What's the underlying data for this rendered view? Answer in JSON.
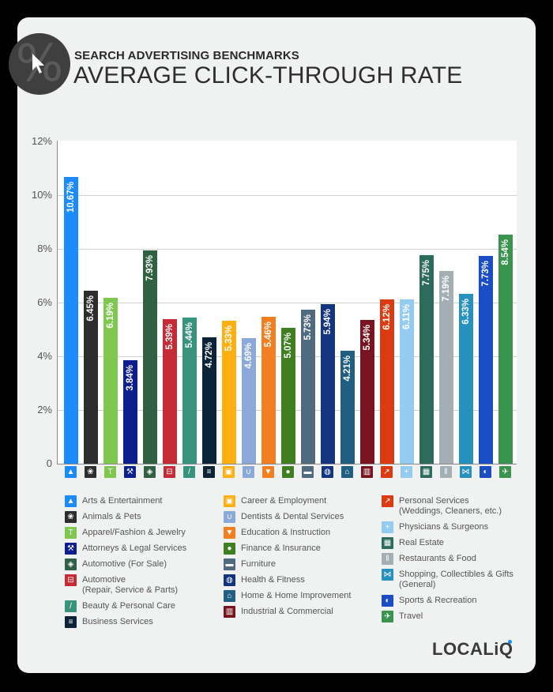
{
  "header": {
    "subtitle": "SEARCH ADVERTISING BENCHMARKS",
    "title": "AVERAGE CLICK-THROUGH RATE",
    "badge_glyph": "%"
  },
  "footer": {
    "logo_text": "LOCALiQ",
    "logo_dot_color": "#1a8cff"
  },
  "chart_data": {
    "type": "bar",
    "title": "Average Click-Through Rate",
    "subtitle": "Search Advertising Benchmarks",
    "xlabel": "",
    "ylabel": "",
    "ylim": [
      0,
      12
    ],
    "yticks": [
      "0",
      "2%",
      "4%",
      "6%",
      "8%",
      "10%",
      "12%"
    ],
    "grid": true,
    "legend_position": "bottom",
    "categories": [
      "Arts & Entertainment",
      "Animals & Pets",
      "Apparel/Fashion & Jewelry",
      "Attorneys & Legal Services",
      "Automotive (For Sale)",
      "Automotive (Repair, Service & Parts)",
      "Beauty & Personal Care",
      "Business Services",
      "Career & Employment",
      "Dentists & Dental Services",
      "Education & Instruction",
      "Finance & Insurance",
      "Furniture",
      "Health & Fitness",
      "Home & Home Improvement",
      "Industrial & Commercial",
      "Personal Services (Weddings, Cleaners, etc.)",
      "Physicians & Surgeons",
      "Real Estate",
      "Restaurants & Food",
      "Shopping, Collectibles & Gifts (General)",
      "Sports & Recreation",
      "Travel"
    ],
    "values": [
      10.67,
      6.45,
      6.19,
      3.84,
      7.93,
      5.39,
      5.44,
      4.72,
      5.33,
      4.69,
      5.46,
      5.07,
      5.73,
      5.94,
      4.21,
      5.34,
      6.12,
      6.11,
      7.75,
      7.19,
      6.33,
      7.73,
      8.54
    ],
    "labels": [
      "10.67%",
      "6.45%",
      "6.19%",
      "3.84%",
      "7.93%",
      "5.39%",
      "5.44%",
      "4.72%",
      "5.33%",
      "4.69%",
      "5.46%",
      "5.07%",
      "5.73%",
      "5.94%",
      "4.21%",
      "5.34%",
      "6.12%",
      "6.11%",
      "7.75%",
      "7.19%",
      "6.33%",
      "7.73%",
      "8.54%"
    ],
    "colors": [
      "#1a8cff",
      "#2d2d2d",
      "#7ec850",
      "#0d1f8c",
      "#2f6142",
      "#c42b35",
      "#37937c",
      "#0c2438",
      "#ffaf0f",
      "#8aa8d8",
      "#f47f21",
      "#3f7e21",
      "#506a80",
      "#13357f",
      "#205e82",
      "#781420",
      "#dc3a10",
      "#94cbf0",
      "#2d6b5d",
      "#a3afb5",
      "#2690be",
      "#1a4cc4",
      "#3a9450"
    ],
    "icons": [
      "image-icon",
      "paw-icon",
      "tshirt-icon",
      "gavel-icon",
      "tag-icon",
      "car-icon",
      "brush-icon",
      "newspaper-icon",
      "briefcase-icon",
      "tooth-icon",
      "graduation-cap-icon",
      "piggy-bank-icon",
      "armchair-icon",
      "apple-tape-icon",
      "house-icon",
      "factory-icon",
      "hand-service-icon",
      "medical-cross-icon",
      "storefront-icon",
      "fork-knife-icon",
      "bow-icon",
      "ball-icon",
      "plane-icon"
    ],
    "icon_glyphs": [
      "▲",
      "❀",
      "T",
      "⚒",
      "◈",
      "⊟",
      "/",
      "≡",
      "▣",
      "∪",
      "▼",
      "●",
      "▬",
      "◍",
      "⌂",
      "▥",
      "↗",
      "+",
      "▦",
      "‖",
      "⋈",
      "◐",
      "✈"
    ]
  },
  "legend": {
    "columns": [
      [
        {
          "label": "Arts & Entertainment",
          "idx": 0
        },
        {
          "label": "Animals & Pets",
          "idx": 1
        },
        {
          "label": "Apparel/Fashion & Jewelry",
          "idx": 2
        },
        {
          "label": "Attorneys & Legal Services",
          "idx": 3
        },
        {
          "label": "Automotive (For Sale)",
          "idx": 4
        },
        {
          "label": "Automotive",
          "label2": "(Repair, Service & Parts)",
          "idx": 5
        },
        {
          "label": "Beauty & Personal Care",
          "idx": 6
        },
        {
          "label": "Business Services",
          "idx": 7
        }
      ],
      [
        {
          "label": "Career & Employment",
          "idx": 8
        },
        {
          "label": "Dentists & Dental Services",
          "idx": 9
        },
        {
          "label": "Education & Instruction",
          "idx": 10
        },
        {
          "label": "Finance & Insurance",
          "idx": 11
        },
        {
          "label": "Furniture",
          "idx": 12
        },
        {
          "label": "Health & Fitness",
          "idx": 13
        },
        {
          "label": "Home & Home Improvement",
          "idx": 14
        },
        {
          "label": "Industrial & Commercial",
          "idx": 15
        }
      ],
      [
        {
          "label": "Personal Services",
          "label2": "(Weddings, Cleaners, etc.)",
          "idx": 16
        },
        {
          "label": "Physicians & Surgeons",
          "idx": 17
        },
        {
          "label": "Real Estate",
          "idx": 18
        },
        {
          "label": "Restaurants & Food",
          "idx": 19
        },
        {
          "label": "Shopping, Collectibles & Gifts",
          "label2": "(General)",
          "idx": 20
        },
        {
          "label": "Sports & Recreation",
          "idx": 21
        },
        {
          "label": "Travel",
          "idx": 22
        }
      ]
    ]
  }
}
